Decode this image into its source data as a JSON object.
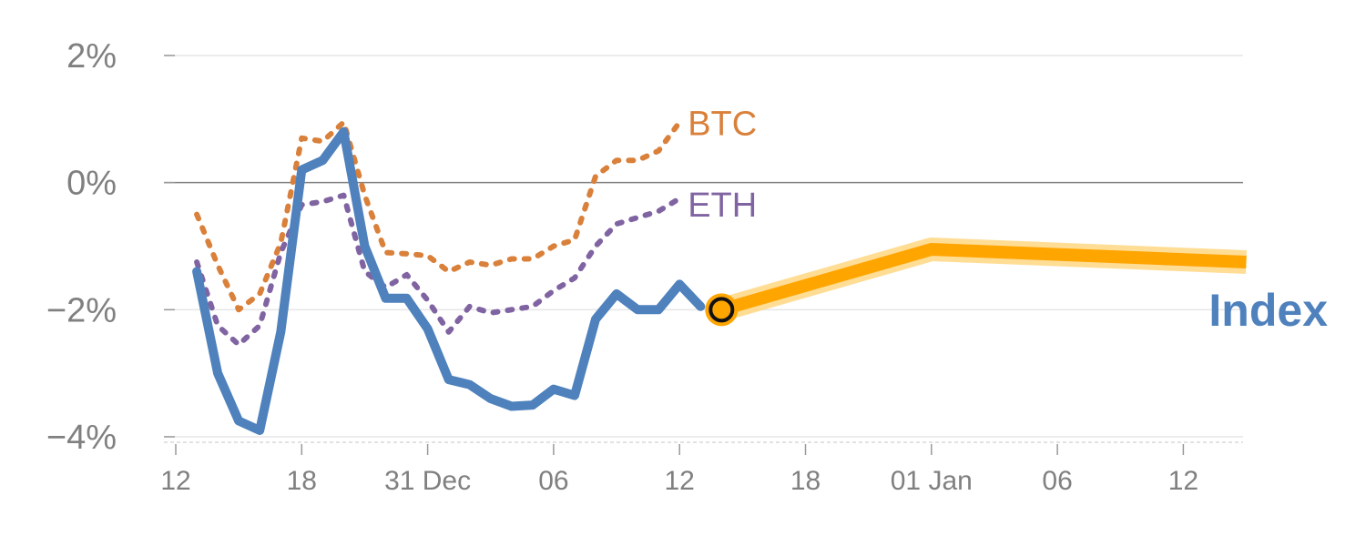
{
  "chart_data": {
    "type": "line",
    "title": "",
    "xlabel": "",
    "ylabel": "",
    "ylim": [
      -4,
      2
    ],
    "y_ticks": [
      {
        "value": 2,
        "label": "2%"
      },
      {
        "value": 0,
        "label": "0%"
      },
      {
        "value": -2,
        "label": "−2%"
      },
      {
        "value": -4,
        "label": "−4%"
      }
    ],
    "x_ticks": [
      {
        "label": "12"
      },
      {
        "label": "18"
      },
      {
        "label": "31 Dec"
      },
      {
        "label": "06"
      },
      {
        "label": "12"
      },
      {
        "label": "18"
      },
      {
        "label": "01 Jan"
      },
      {
        "label": "06"
      },
      {
        "label": "12"
      }
    ],
    "grid": true,
    "legend": "inline labels at line ends",
    "colors": {
      "index": "#4f81bd",
      "btc": "#d9803a",
      "eth": "#8064a2",
      "forecast": "#ffa500",
      "forecast_glow": "#ffd98a",
      "grid": "#e6e6e6",
      "zero_line": "#808080",
      "tick_text": "#808080"
    },
    "series": [
      {
        "name": "Index",
        "style": "solid",
        "x": [
          1,
          2,
          3,
          4,
          5,
          6,
          7,
          8,
          9,
          10,
          11,
          12,
          13,
          14,
          15,
          16,
          17,
          18,
          19,
          20,
          21,
          22,
          23,
          24,
          25,
          26,
          27
        ],
        "values": [
          -1.4,
          -3.0,
          -3.75,
          -3.9,
          -2.35,
          0.2,
          0.35,
          0.8,
          -1.0,
          -1.82,
          -1.82,
          -2.3,
          -3.1,
          -3.18,
          -3.4,
          -3.52,
          -3.5,
          -3.25,
          -3.35,
          -2.15,
          -1.75,
          -2.0,
          -2.0,
          -1.6,
          -1.95,
          null,
          null
        ]
      },
      {
        "name": "BTC",
        "style": "dotted",
        "x": [
          1,
          2,
          3,
          4,
          5,
          6,
          7,
          8,
          9,
          10,
          11,
          12,
          13,
          14,
          15,
          16,
          17,
          18,
          19,
          20,
          21,
          22,
          23,
          24,
          25
        ],
        "values": [
          -0.5,
          -1.3,
          -2.0,
          -1.75,
          -0.95,
          0.7,
          0.65,
          0.95,
          -0.2,
          -1.1,
          -1.12,
          -1.15,
          -1.4,
          -1.25,
          -1.3,
          -1.2,
          -1.2,
          -1.0,
          -0.9,
          0.1,
          0.35,
          0.35,
          0.5,
          0.95,
          null
        ]
      },
      {
        "name": "ETH",
        "style": "dotted",
        "x": [
          1,
          2,
          3,
          4,
          5,
          6,
          7,
          8,
          9,
          10,
          11,
          12,
          13,
          14,
          15,
          16,
          17,
          18,
          19,
          20,
          21,
          22,
          23,
          24,
          25
        ],
        "values": [
          -1.25,
          -2.25,
          -2.55,
          -2.25,
          -1.1,
          -0.35,
          -0.3,
          -0.2,
          -1.4,
          -1.65,
          -1.45,
          -1.85,
          -2.35,
          -1.95,
          -2.05,
          -2.0,
          -1.95,
          -1.7,
          -1.5,
          -1.0,
          -0.65,
          -0.55,
          -0.45,
          -0.25,
          null
        ]
      }
    ],
    "forecast": {
      "x": [
        26,
        36,
        51
      ],
      "values": [
        -2.0,
        -1.05,
        -1.25
      ]
    },
    "current_marker": {
      "x": 26,
      "value": -2.0
    },
    "end_labels": {
      "btc": "BTC",
      "eth": "ETH",
      "index": "Index"
    }
  }
}
